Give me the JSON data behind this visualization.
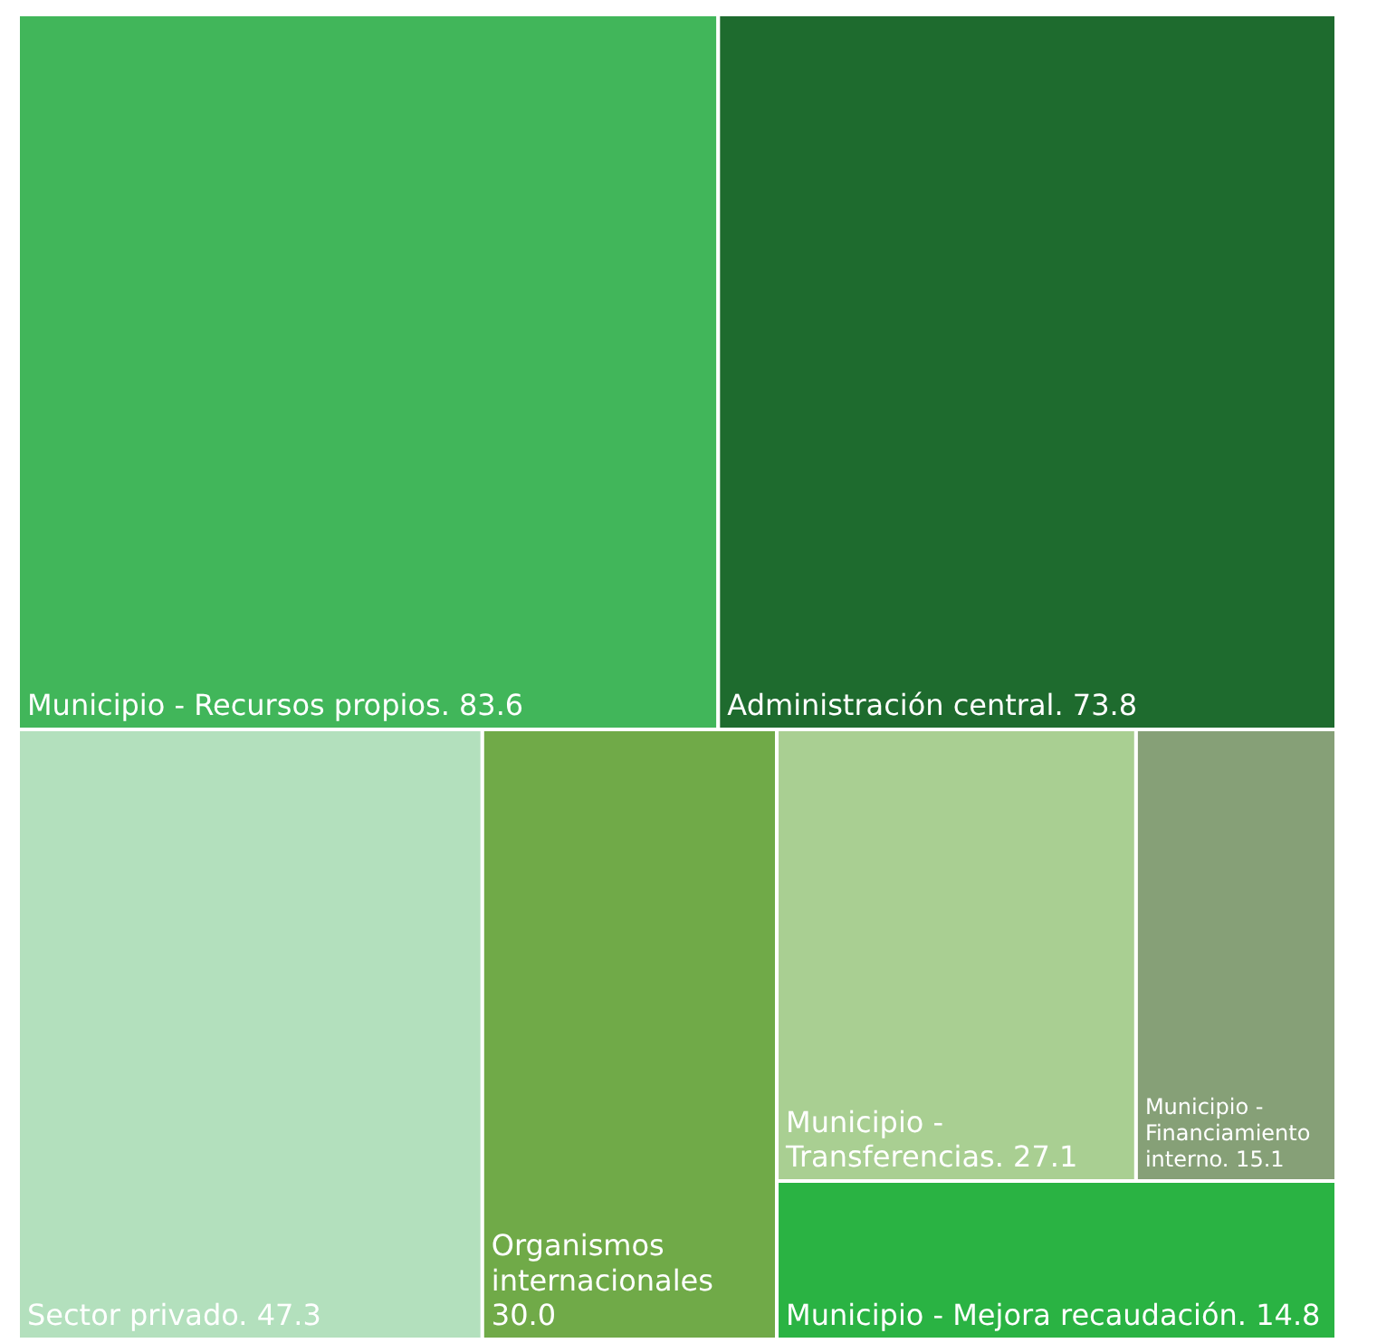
{
  "chart_data": {
    "type": "other",
    "categories": [
      "Municipio - Recursos propios.",
      "Administración central.",
      "Sector privado.",
      "Organismos internacionales",
      "Municipio - Transferencias.",
      "Municipio - Financiamiento interno.",
      "Municipio - Mejora recaudación."
    ],
    "values": [
      83.6,
      73.8,
      47.3,
      30.0,
      27.1,
      15.1,
      14.8
    ],
    "value_labels": [
      "83.6",
      "73.8",
      "47.3",
      "30.0",
      "27.1",
      "15.1",
      "14.8"
    ],
    "colors": [
      "#41b65a",
      "#1e6b2e",
      "#b3e0bd",
      "#70aa48",
      "#a9cf92",
      "#86a077",
      "#2ab343"
    ]
  }
}
